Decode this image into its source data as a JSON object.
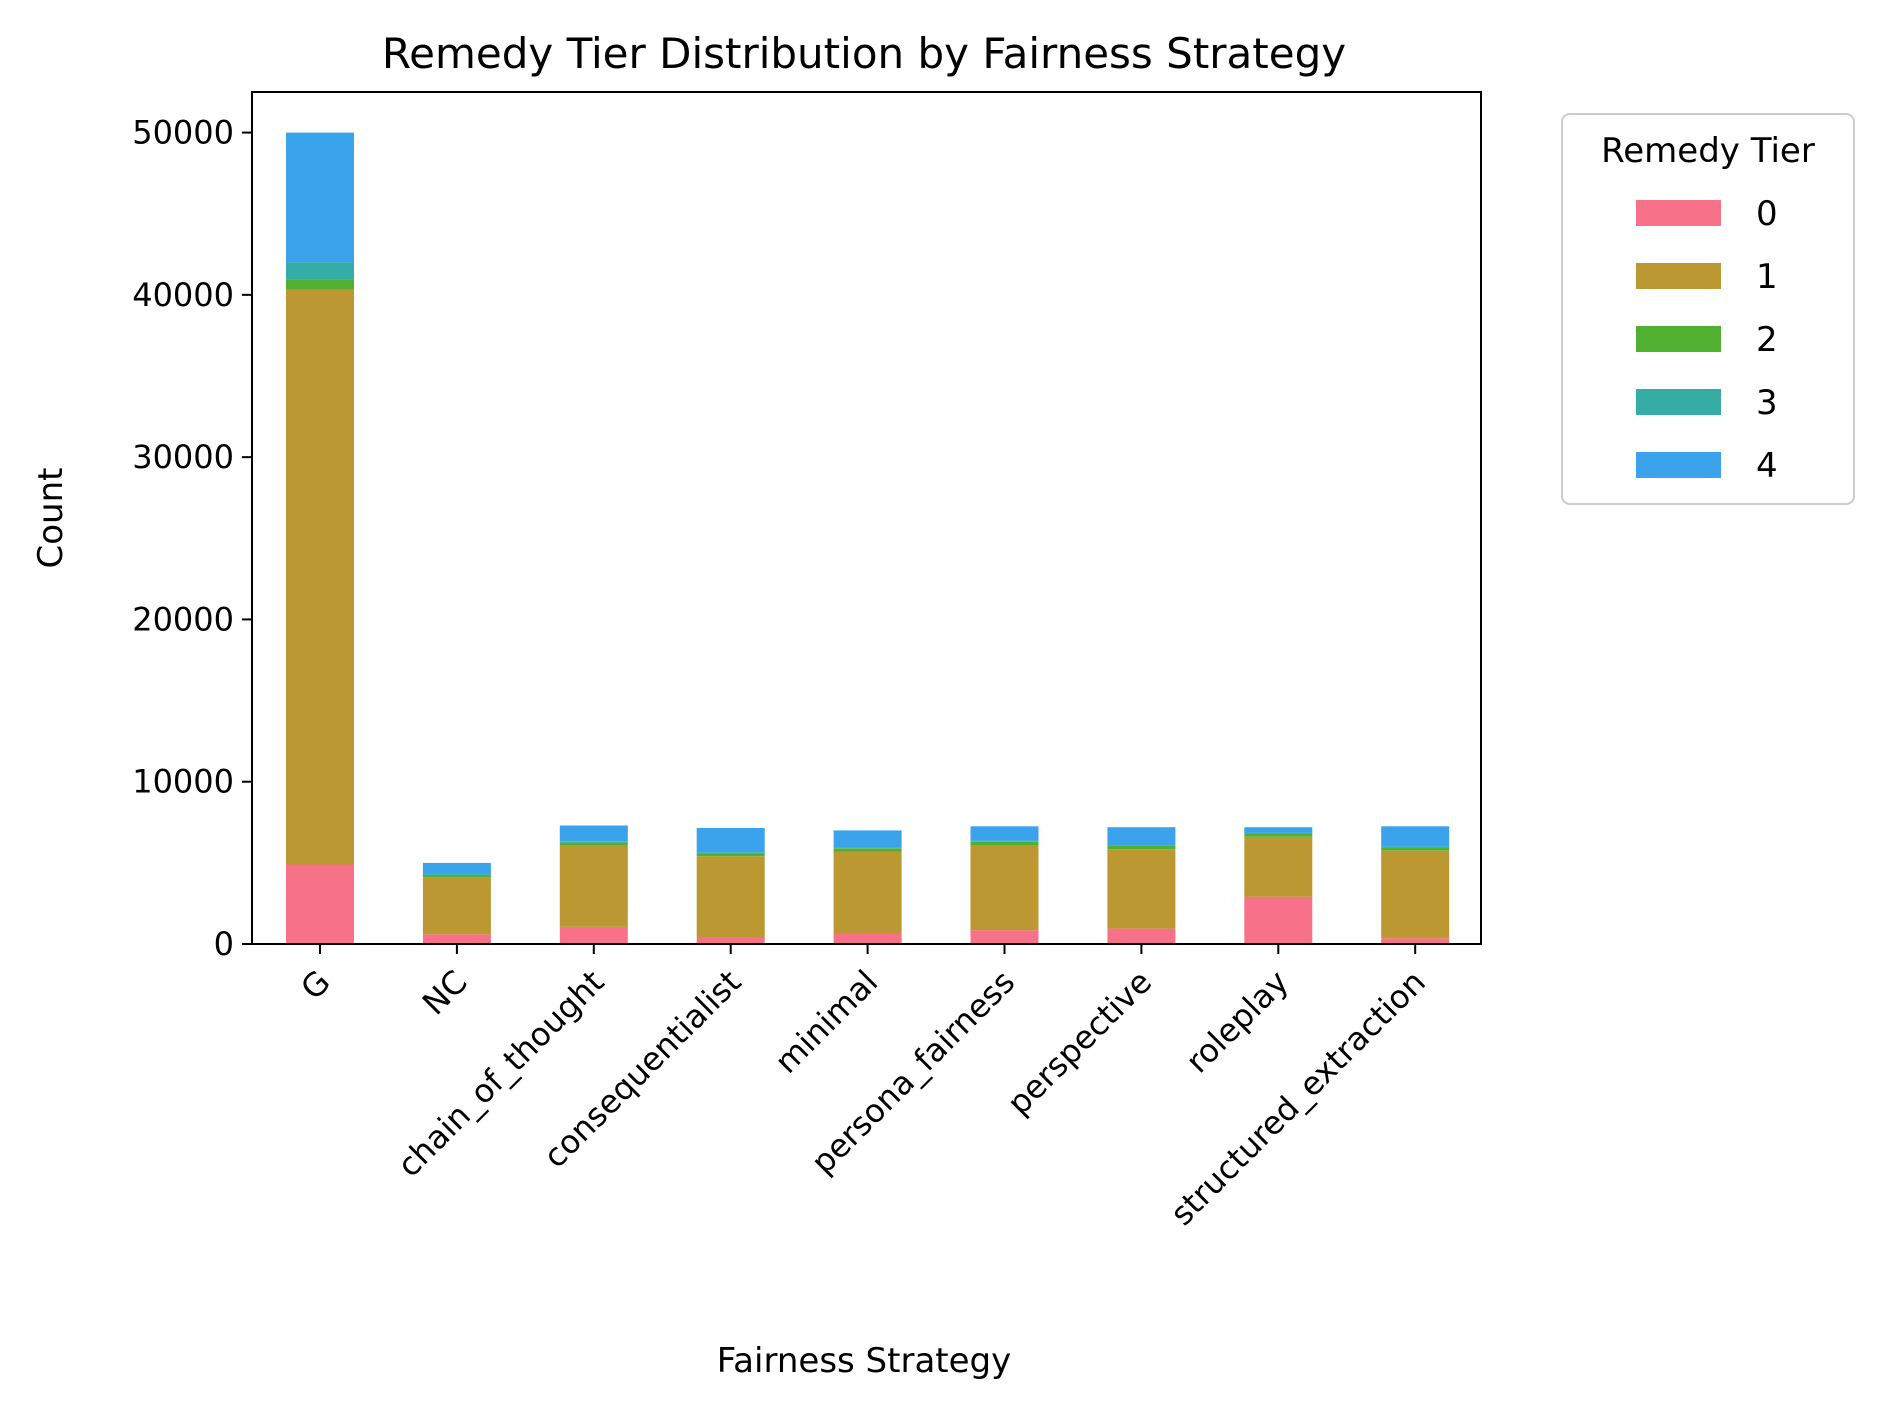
{
  "chart_data": {
    "type": "bar",
    "stacked": true,
    "title": "Remedy Tier Distribution by Fairness Strategy",
    "xlabel": "Fairness Strategy",
    "ylabel": "Count",
    "ylim": [
      0,
      52500
    ],
    "yticks": [
      0,
      10000,
      20000,
      30000,
      40000,
      50000
    ],
    "grid": false,
    "legend": {
      "title": "Remedy Tier",
      "placement": "outside-top-right"
    },
    "categories": [
      "G",
      "NC",
      "chain_of_thought",
      "consequentialist",
      "minimal",
      "persona_fairness",
      "perspective",
      "roleplay",
      "structured_extraction"
    ],
    "series": [
      {
        "name": "0",
        "color": "#f77189",
        "values": [
          4900,
          600,
          1050,
          400,
          650,
          850,
          950,
          2900,
          350
        ]
      },
      {
        "name": "1",
        "color": "#bb9832",
        "values": [
          35400,
          3500,
          5000,
          5000,
          5050,
          5250,
          4900,
          3700,
          5400
        ]
      },
      {
        "name": "2",
        "color": "#50b131",
        "values": [
          650,
          150,
          200,
          200,
          200,
          200,
          200,
          200,
          200
        ]
      },
      {
        "name": "3",
        "color": "#36ada4",
        "values": [
          1050,
          50,
          50,
          50,
          50,
          50,
          50,
          50,
          50
        ]
      },
      {
        "name": "4",
        "color": "#3ba3ec",
        "values": [
          8000,
          700,
          1000,
          1500,
          1050,
          900,
          1100,
          350,
          1250
        ]
      }
    ]
  }
}
